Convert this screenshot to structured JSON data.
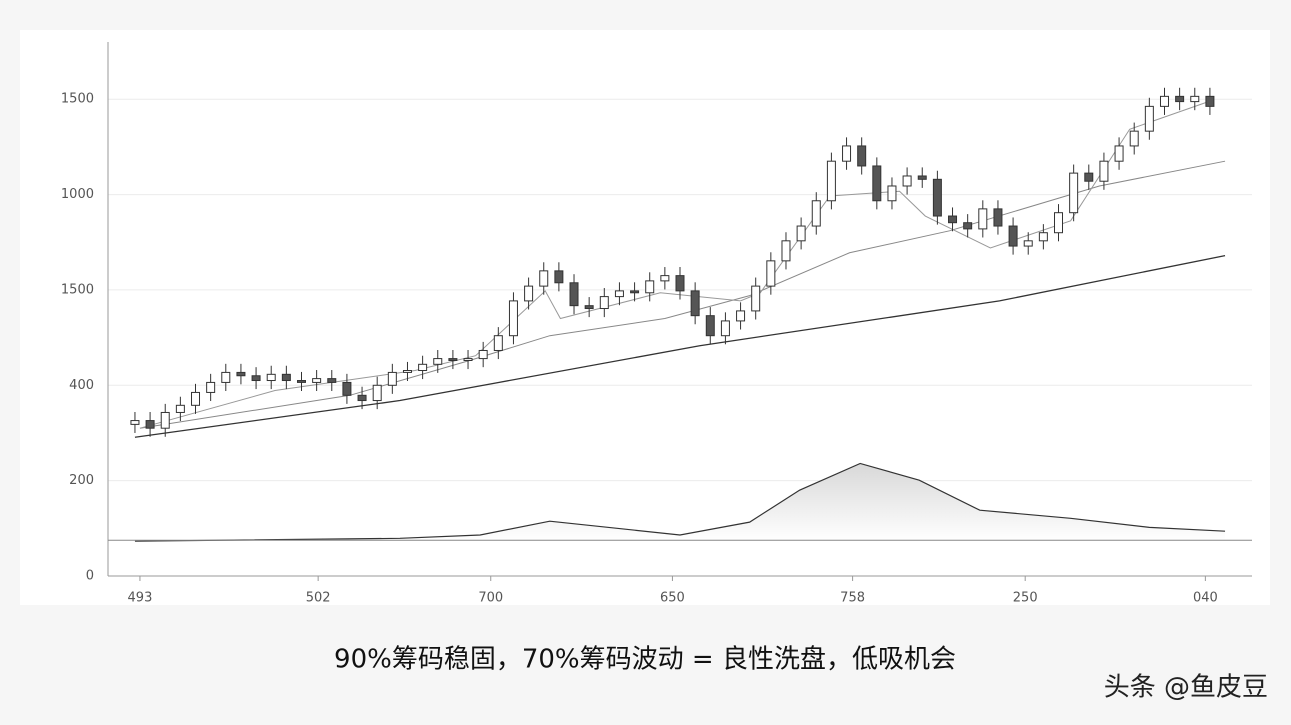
{
  "chart_data": {
    "type": "candlestick",
    "caption": "90%筹码稳固，70%筹码波动 = 良性洗盘，低吸机会",
    "watermark": "头条 @鱼皮豆",
    "xlim": [
      -1.78,
      73.78
    ],
    "xticks": [
      {
        "value": 0.33,
        "label": "493"
      },
      {
        "value": 12.1,
        "label": "502"
      },
      {
        "value": 23.5,
        "label": "700"
      },
      {
        "value": 35.5,
        "label": "650"
      },
      {
        "value": 47.4,
        "label": "758"
      },
      {
        "value": 58.8,
        "label": "250"
      },
      {
        "value": 70.7,
        "label": "040"
      }
    ],
    "ylim": [
      0,
      1120
    ],
    "yticks": [
      0,
      200,
      400,
      {
        "value": 600,
        "label": "1500"
      },
      {
        "value": 800,
        "label": "1000"
      },
      {
        "value": 1000,
        "label": "1500"
      }
    ],
    "grid": true,
    "up_color": "#ffffff",
    "down_color": "#555555",
    "edge_color": "#333333",
    "x": [
      0,
      1,
      2,
      3,
      4,
      5,
      6,
      7,
      8,
      9,
      10,
      11,
      12,
      13,
      14,
      15,
      16,
      17,
      18,
      19,
      20,
      21,
      22,
      23,
      24,
      25,
      26,
      27,
      28,
      29,
      30,
      31,
      32,
      33,
      34,
      35,
      36,
      37,
      38,
      39,
      40,
      41,
      42,
      43,
      44,
      45,
      46,
      47,
      48,
      49,
      50,
      51,
      52,
      53,
      54,
      55,
      56,
      57,
      58,
      59,
      60,
      61,
      62,
      63,
      64,
      65,
      66,
      67,
      68,
      69,
      70,
      71
    ],
    "open": [
      318,
      326,
      310,
      343,
      358,
      385,
      406,
      427,
      420,
      410,
      423,
      410,
      406,
      414,
      406,
      379,
      368,
      400,
      427,
      431,
      444,
      456,
      452,
      456,
      473,
      504,
      577,
      608,
      640,
      615,
      567,
      561,
      586,
      598,
      594,
      619,
      630,
      598,
      546,
      504,
      535,
      556,
      608,
      661,
      703,
      734,
      787,
      870,
      902,
      860,
      787,
      818,
      839,
      832,
      755,
      741,
      728,
      770,
      734,
      692,
      703,
      720,
      762,
      845,
      828,
      870,
      902,
      933,
      985,
      1006,
      995,
      1006
    ],
    "high": [
      344,
      344,
      361,
      376,
      403,
      424,
      445,
      445,
      438,
      441,
      441,
      428,
      432,
      432,
      424,
      397,
      418,
      445,
      449,
      462,
      474,
      474,
      474,
      491,
      522,
      595,
      626,
      658,
      658,
      633,
      585,
      604,
      616,
      616,
      637,
      648,
      648,
      616,
      564,
      553,
      574,
      626,
      679,
      721,
      752,
      805,
      888,
      920,
      920,
      878,
      836,
      857,
      857,
      850,
      773,
      759,
      788,
      788,
      752,
      721,
      738,
      780,
      863,
      863,
      888,
      920,
      951,
      1003,
      1024,
      1024,
      1024,
      1024
    ],
    "low": [
      300,
      292,
      292,
      325,
      340,
      367,
      388,
      402,
      392,
      392,
      392,
      388,
      388,
      388,
      361,
      350,
      350,
      382,
      409,
      413,
      426,
      434,
      434,
      438,
      455,
      486,
      559,
      590,
      597,
      549,
      543,
      543,
      568,
      576,
      576,
      601,
      580,
      528,
      486,
      486,
      517,
      538,
      590,
      643,
      685,
      716,
      769,
      852,
      842,
      769,
      769,
      800,
      814,
      737,
      723,
      710,
      710,
      716,
      674,
      674,
      685,
      702,
      744,
      810,
      810,
      852,
      884,
      915,
      967,
      977,
      977,
      967
    ],
    "close": [
      326,
      310,
      343,
      358,
      385,
      406,
      427,
      420,
      410,
      423,
      410,
      406,
      414,
      406,
      379,
      368,
      400,
      427,
      431,
      444,
      456,
      452,
      456,
      473,
      504,
      577,
      608,
      640,
      615,
      567,
      561,
      586,
      598,
      594,
      619,
      630,
      598,
      546,
      504,
      535,
      556,
      608,
      661,
      703,
      734,
      787,
      870,
      902,
      860,
      787,
      818,
      839,
      832,
      755,
      741,
      728,
      770,
      734,
      692,
      703,
      720,
      762,
      845,
      828,
      870,
      902,
      933,
      985,
      1006,
      995,
      1006,
      985
    ],
    "lines": [
      {
        "color": "#333333",
        "x": [
          0,
          17.5,
          37.3,
          57.1,
          72
        ],
        "values": [
          291,
          368,
          483,
          577,
          672
        ]
      },
      {
        "color": "#888888",
        "x": [
          0.33,
          14.2,
          22.1,
          27.4,
          35.0,
          40.6,
          47.2,
          53.8,
          63.7,
          72.0
        ],
        "values": [
          310,
          379,
          452,
          504,
          540,
          588,
          678,
          724,
          818,
          870
        ]
      },
      {
        "color": "#999999",
        "x": [
          0.33,
          9.25,
          18.5,
          22.5,
          27.1,
          28.1,
          34.7,
          40.0,
          41.3,
          45.9,
          50.5,
          52.2,
          56.5,
          61.8,
          65.7,
          71.0
        ],
        "values": [
          310,
          389,
          431,
          462,
          598,
          540,
          594,
          577,
          594,
          797,
          807,
          755,
          688,
          745,
          937,
          996
        ]
      }
    ],
    "distribution": {
      "color": "#333333",
      "x": [
        0,
        17.5,
        22.8,
        27.4,
        36.0,
        40.6,
        43.9,
        47.9,
        51.8,
        55.8,
        61.8,
        67.0,
        72.0
      ],
      "values": [
        73,
        79,
        86,
        115,
        86,
        113,
        180,
        236,
        201,
        138,
        121,
        102,
        94
      ]
    },
    "hline": 75
  }
}
